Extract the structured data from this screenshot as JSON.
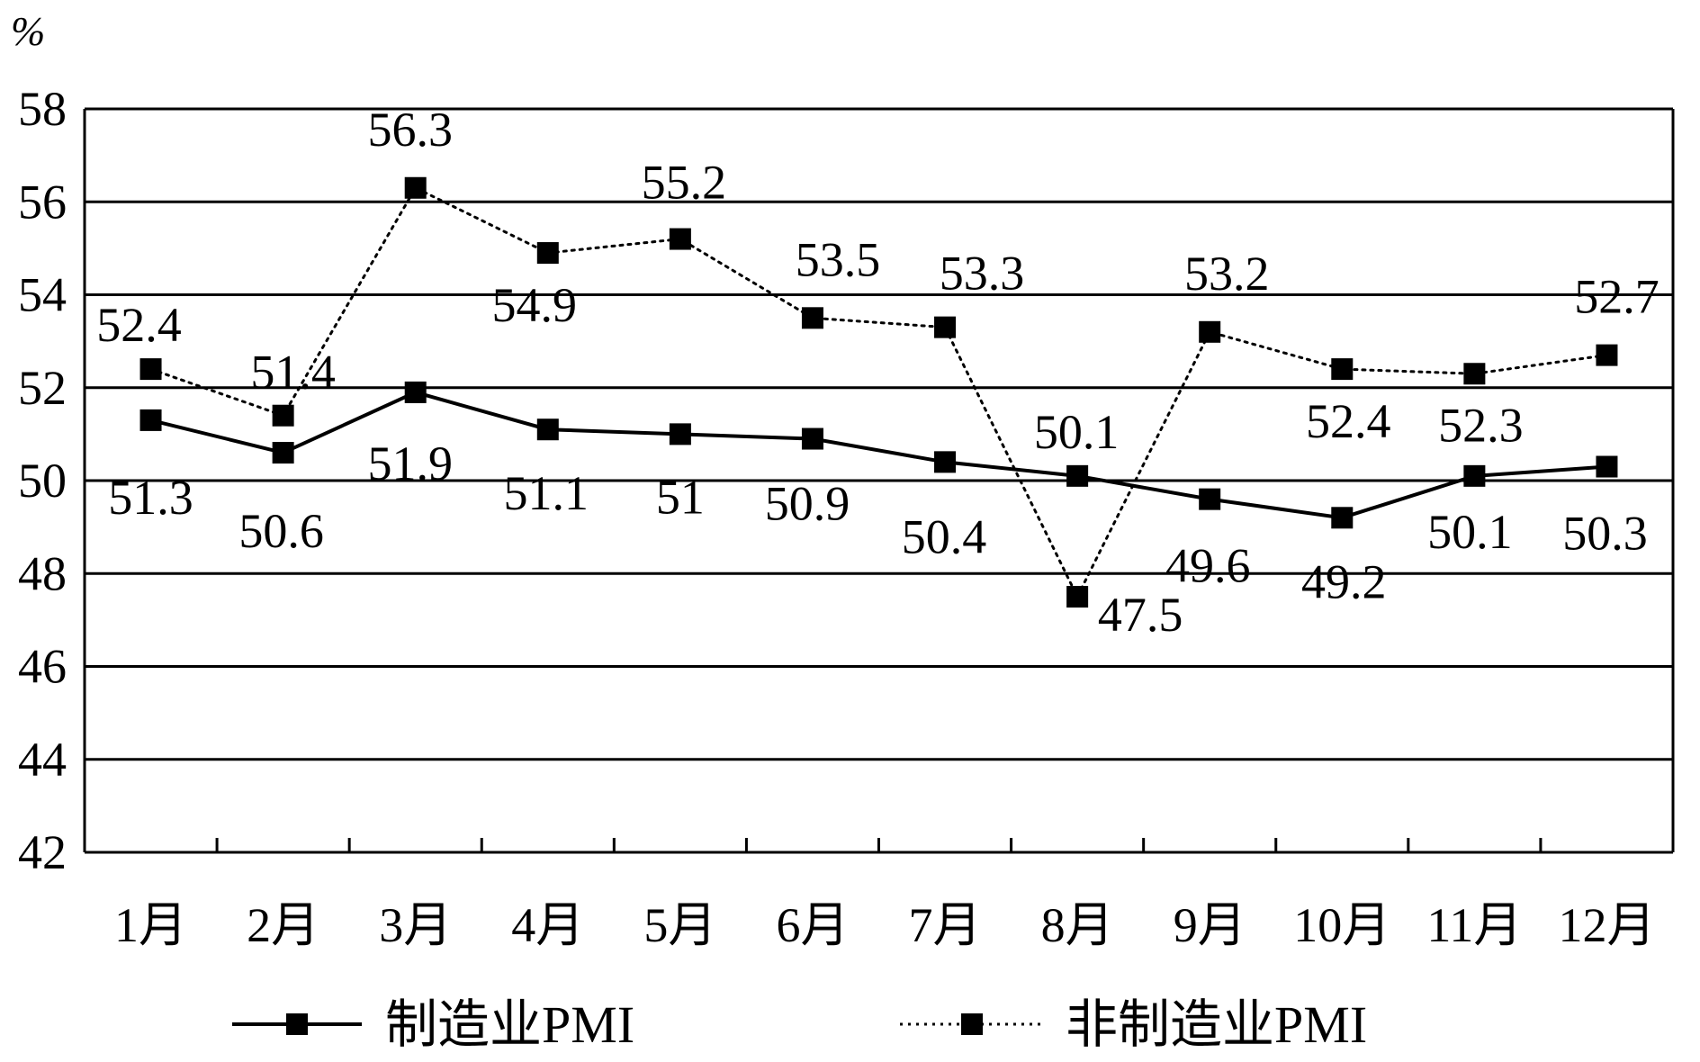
{
  "chart_data": {
    "type": "line",
    "title": "",
    "ylabel": "%",
    "xlabel": "",
    "ylim": [
      42,
      58
    ],
    "yticks": [
      "42",
      "44",
      "46",
      "48",
      "50",
      "52",
      "54",
      "56",
      "58"
    ],
    "categories": [
      "1月",
      "2月",
      "3月",
      "4月",
      "5月",
      "6月",
      "7月",
      "8月",
      "9月",
      "10月",
      "11月",
      "12月"
    ],
    "grid": "horizontal",
    "legend_position": "bottom",
    "series": [
      {
        "name": "制造业PMI",
        "style": "solid",
        "marker": "square",
        "color": "#000000",
        "values": [
          51.3,
          50.6,
          51.9,
          51.1,
          51,
          50.9,
          50.4,
          50.1,
          49.6,
          49.2,
          50.1,
          50.3
        ],
        "labels": [
          "51.3",
          "50.6",
          "51.9",
          "51.1",
          "51",
          "50.9",
          "50.4",
          "50.1",
          "49.6",
          "49.2",
          "50.1",
          "50.3"
        ]
      },
      {
        "name": "非制造业PMI",
        "style": "dotted",
        "marker": "square",
        "color": "#000000",
        "values": [
          52.4,
          51.4,
          56.3,
          54.9,
          55.2,
          53.5,
          53.3,
          47.5,
          53.2,
          52.4,
          52.3,
          52.7
        ],
        "labels": [
          "52.4",
          "51.4",
          "56.3",
          "54.9",
          "55.2",
          "53.5",
          "53.3",
          "47.5",
          "53.2",
          "52.4",
          "52.3",
          "52.7"
        ]
      }
    ]
  }
}
